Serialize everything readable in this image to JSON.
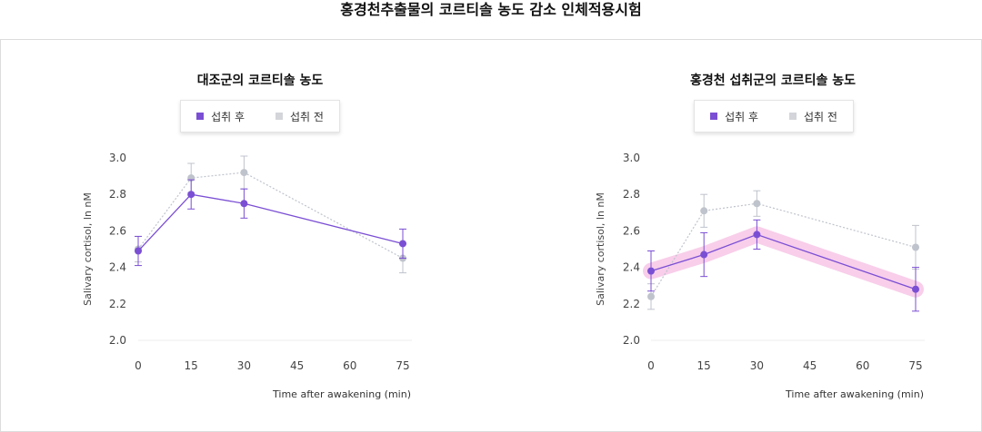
{
  "page_title": "홍경천추출물의 코르티솔 농도 감소 인체적용시험",
  "colors": {
    "after": "#7b4fd4",
    "before": "#bfc3cc",
    "highlight": "#f7c6e6"
  },
  "chart_data": [
    {
      "type": "line",
      "title": "대조군의 코르티솔 농도",
      "xlabel": "Time after awakening  (min)",
      "ylabel": "Salivary cortisol, ln nM",
      "x": [
        0,
        15,
        30,
        75
      ],
      "xticks": [
        0,
        15,
        30,
        45,
        60,
        75
      ],
      "yticks": [
        2.0,
        2.2,
        2.4,
        2.6,
        2.8,
        3.0
      ],
      "ylim": [
        2.0,
        3.0
      ],
      "legend": "top-center",
      "highlight_after": false,
      "series": [
        {
          "name": "섭취 후",
          "key": "after",
          "values": [
            2.49,
            2.8,
            2.75,
            2.53
          ],
          "err": [
            0.08,
            0.08,
            0.08,
            0.08
          ]
        },
        {
          "name": "섭취 전",
          "key": "before",
          "values": [
            2.5,
            2.89,
            2.92,
            2.45
          ],
          "err": [
            0.07,
            0.08,
            0.09,
            0.08
          ]
        }
      ]
    },
    {
      "type": "line",
      "title": "홍경천 섭취군의 코르티솔 농도",
      "xlabel": "Time after awakening  (min)",
      "ylabel": "Salivary cortisol, ln nM",
      "x": [
        0,
        15,
        30,
        75
      ],
      "xticks": [
        0,
        15,
        30,
        45,
        60,
        75
      ],
      "yticks": [
        2.0,
        2.2,
        2.4,
        2.6,
        2.8,
        3.0
      ],
      "ylim": [
        2.0,
        3.0
      ],
      "legend": "top-center",
      "highlight_after": true,
      "series": [
        {
          "name": "섭취 후",
          "key": "after",
          "values": [
            2.38,
            2.47,
            2.58,
            2.28
          ],
          "err": [
            0.11,
            0.12,
            0.08,
            0.12
          ]
        },
        {
          "name": "섭취 전",
          "key": "before",
          "values": [
            2.24,
            2.71,
            2.75,
            2.51
          ],
          "err": [
            0.07,
            0.09,
            0.07,
            0.12
          ]
        }
      ]
    }
  ]
}
